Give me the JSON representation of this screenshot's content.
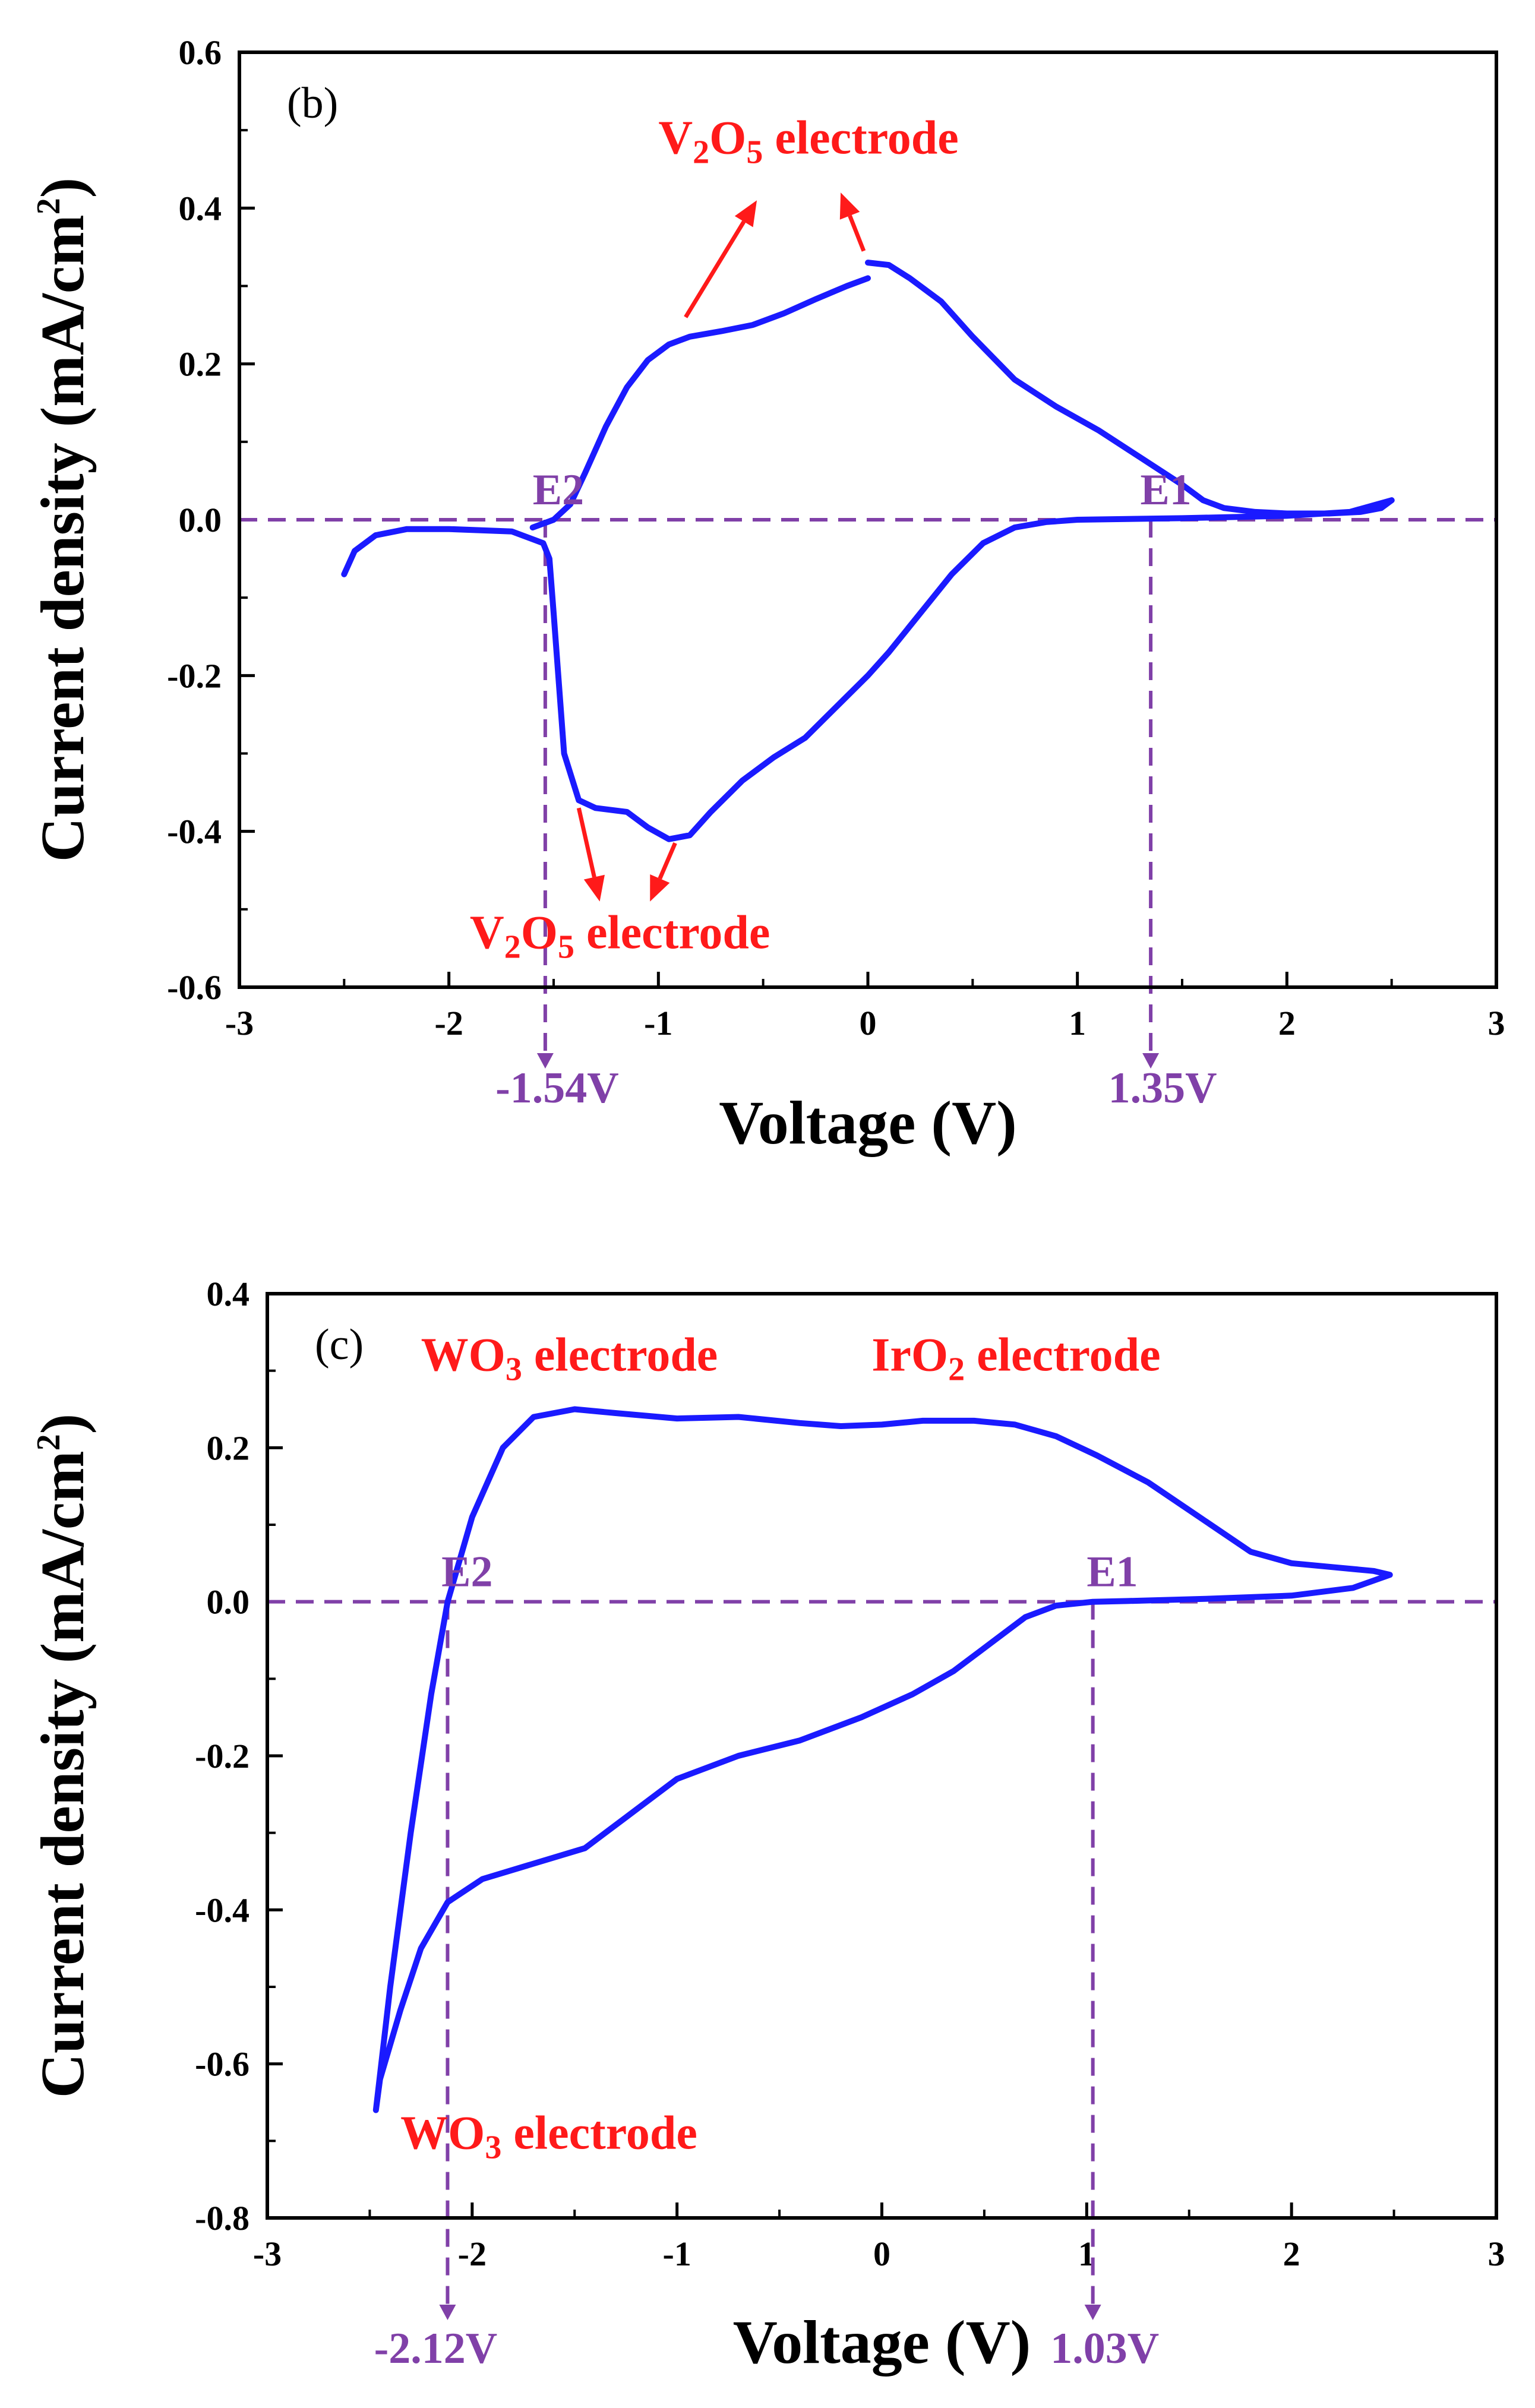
{
  "chart_data": [
    {
      "type": "line",
      "panel_label": "(b)",
      "xlabel": "Voltage (V)",
      "ylabel_main": "Current density (mA/cm",
      "ylabel_sup": "2",
      "ylabel_close": ")",
      "xlim": [
        -3,
        3
      ],
      "ylim": [
        -0.6,
        0.6
      ],
      "xticks": [
        "-3",
        "-2",
        "-1",
        "0",
        "1",
        "2",
        "3"
      ],
      "yticks": [
        "-0.6",
        "-0.4",
        "-0.2",
        "0.0",
        "0.2",
        "0.4",
        "0.6"
      ],
      "line_color": "#1a1aff",
      "accent_color": "#ff1a1a",
      "marker_color": "#8040a8",
      "series": [
        {
          "name": "upper-sweep-1",
          "points": [
            [
              -1.6,
              -0.01
            ],
            [
              -1.5,
              0.0
            ],
            [
              -1.42,
              0.02
            ],
            [
              -1.35,
              0.06
            ],
            [
              -1.25,
              0.12
            ],
            [
              -1.15,
              0.17
            ],
            [
              -1.05,
              0.205
            ],
            [
              -0.95,
              0.225
            ],
            [
              -0.85,
              0.235
            ],
            [
              -0.7,
              0.242
            ],
            [
              -0.55,
              0.25
            ],
            [
              -0.4,
              0.265
            ],
            [
              -0.25,
              0.283
            ],
            [
              -0.1,
              0.3
            ],
            [
              0.0,
              0.31
            ]
          ]
        },
        {
          "name": "upper-sweep-2",
          "points": [
            [
              0.0,
              0.33
            ],
            [
              0.1,
              0.327
            ],
            [
              0.2,
              0.31
            ],
            [
              0.35,
              0.28
            ],
            [
              0.5,
              0.235
            ],
            [
              0.7,
              0.18
            ],
            [
              0.9,
              0.145
            ],
            [
              1.1,
              0.115
            ],
            [
              1.3,
              0.08
            ],
            [
              1.5,
              0.045
            ],
            [
              1.6,
              0.025
            ],
            [
              1.7,
              0.015
            ],
            [
              1.85,
              0.01
            ],
            [
              2.0,
              0.008
            ],
            [
              2.2,
              0.008
            ],
            [
              2.35,
              0.01
            ],
            [
              2.45,
              0.015
            ],
            [
              2.5,
              0.025
            ]
          ]
        },
        {
          "name": "lower-sweep",
          "points": [
            [
              2.5,
              0.025
            ],
            [
              2.3,
              0.01
            ],
            [
              2.0,
              0.005
            ],
            [
              1.5,
              0.002
            ],
            [
              1.0,
              0.0
            ],
            [
              0.85,
              -0.003
            ],
            [
              0.7,
              -0.01
            ],
            [
              0.55,
              -0.03
            ],
            [
              0.4,
              -0.07
            ],
            [
              0.25,
              -0.12
            ],
            [
              0.1,
              -0.17
            ],
            [
              0.0,
              -0.2
            ],
            [
              -0.15,
              -0.24
            ],
            [
              -0.3,
              -0.28
            ],
            [
              -0.45,
              -0.305
            ],
            [
              -0.6,
              -0.335
            ],
            [
              -0.75,
              -0.375
            ],
            [
              -0.85,
              -0.405
            ],
            [
              -0.95,
              -0.41
            ],
            [
              -1.05,
              -0.395
            ],
            [
              -1.15,
              -0.375
            ],
            [
              -1.3,
              -0.37
            ],
            [
              -1.38,
              -0.36
            ],
            [
              -1.45,
              -0.3
            ],
            [
              -1.5,
              -0.12
            ],
            [
              -1.52,
              -0.05
            ],
            [
              -1.55,
              -0.03
            ],
            [
              -1.7,
              -0.015
            ],
            [
              -2.0,
              -0.012
            ],
            [
              -2.2,
              -0.012
            ],
            [
              -2.35,
              -0.02
            ],
            [
              -2.45,
              -0.04
            ],
            [
              -2.5,
              -0.07
            ]
          ]
        }
      ],
      "reference_lines": {
        "horizontal_y": 0.0,
        "vertical_x": [
          -1.54,
          1.35
        ],
        "labels": [
          "-1.54V",
          "1.35V"
        ]
      },
      "annotations": [
        {
          "id": "E2",
          "text": "E2",
          "x": -1.6,
          "y": 0.02
        },
        {
          "id": "E1",
          "text": "E1",
          "x": 1.3,
          "y": 0.02
        },
        {
          "id": "top",
          "main": "V",
          "sub1": "2",
          "mid": "O",
          "sub2": "5",
          "tail": " electrode",
          "x": -1.0,
          "y": 0.47
        },
        {
          "id": "bottom",
          "main": "V",
          "sub1": "2",
          "mid": "O",
          "sub2": "5",
          "tail": " electrode",
          "x": -1.9,
          "y": -0.55
        }
      ],
      "arrows": [
        {
          "from": [
            -0.87,
            0.26
          ],
          "to": [
            -0.53,
            0.41
          ]
        },
        {
          "from": [
            -0.02,
            0.345
          ],
          "to": [
            -0.13,
            0.42
          ]
        },
        {
          "from": [
            -1.38,
            -0.37
          ],
          "to": [
            -1.28,
            -0.49
          ]
        },
        {
          "from": [
            -0.92,
            -0.415
          ],
          "to": [
            -1.04,
            -0.49
          ]
        }
      ]
    },
    {
      "type": "line",
      "panel_label": "(c)",
      "xlabel": "Voltage (V)",
      "ylabel_main": "Current density (mA/cm",
      "ylabel_sup": "2",
      "ylabel_close": ")",
      "xlim": [
        -3,
        3
      ],
      "ylim": [
        -0.8,
        0.4
      ],
      "xticks": [
        "-3",
        "-2",
        "-1",
        "0",
        "1",
        "2",
        "3"
      ],
      "yticks": [
        "-0.8",
        "-0.6",
        "-0.4",
        "-0.2",
        "0.0",
        "0.2",
        "0.4"
      ],
      "line_color": "#1a1aff",
      "accent_color": "#ff1a1a",
      "marker_color": "#8040a8",
      "series": [
        {
          "name": "cv-loop",
          "points": [
            [
              -2.47,
              -0.66
            ],
            [
              -2.4,
              -0.5
            ],
            [
              -2.3,
              -0.3
            ],
            [
              -2.2,
              -0.12
            ],
            [
              -2.12,
              0.0
            ],
            [
              -2.0,
              0.11
            ],
            [
              -1.85,
              0.2
            ],
            [
              -1.7,
              0.24
            ],
            [
              -1.5,
              0.25
            ],
            [
              -1.3,
              0.245
            ],
            [
              -1.0,
              0.238
            ],
            [
              -0.7,
              0.24
            ],
            [
              -0.4,
              0.232
            ],
            [
              -0.2,
              0.228
            ],
            [
              0.0,
              0.23
            ],
            [
              0.2,
              0.235
            ],
            [
              0.45,
              0.235
            ],
            [
              0.65,
              0.23
            ],
            [
              0.85,
              0.215
            ],
            [
              1.05,
              0.19
            ],
            [
              1.3,
              0.155
            ],
            [
              1.55,
              0.11
            ],
            [
              1.8,
              0.065
            ],
            [
              2.0,
              0.05
            ],
            [
              2.2,
              0.045
            ],
            [
              2.4,
              0.04
            ],
            [
              2.48,
              0.035
            ],
            [
              2.3,
              0.018
            ],
            [
              2.0,
              0.008
            ],
            [
              1.6,
              0.004
            ],
            [
              1.2,
              0.001
            ],
            [
              1.03,
              0.0
            ],
            [
              0.85,
              -0.005
            ],
            [
              0.7,
              -0.02
            ],
            [
              0.55,
              -0.05
            ],
            [
              0.35,
              -0.09
            ],
            [
              0.15,
              -0.12
            ],
            [
              -0.1,
              -0.15
            ],
            [
              -0.4,
              -0.18
            ],
            [
              -0.7,
              -0.2
            ],
            [
              -1.0,
              -0.23
            ],
            [
              -1.25,
              -0.28
            ],
            [
              -1.45,
              -0.32
            ],
            [
              -1.7,
              -0.34
            ],
            [
              -1.95,
              -0.36
            ],
            [
              -2.12,
              -0.39
            ],
            [
              -2.25,
              -0.45
            ],
            [
              -2.35,
              -0.53
            ],
            [
              -2.45,
              -0.62
            ],
            [
              -2.47,
              -0.66
            ]
          ]
        }
      ],
      "reference_lines": {
        "horizontal_y": 0.0,
        "vertical_x": [
          -2.12,
          1.03
        ],
        "labels": [
          "-2.12V",
          "1.03V"
        ]
      },
      "annotations": [
        {
          "id": "E2",
          "text": "E2",
          "x": -2.15,
          "y": 0.02
        },
        {
          "id": "E1",
          "text": "E1",
          "x": 1.0,
          "y": 0.02
        },
        {
          "id": "top-left",
          "main": "WO",
          "sub1": "3",
          "mid": "",
          "sub2": "",
          "tail": " electrode",
          "x": -2.25,
          "y": 0.3
        },
        {
          "id": "top-right",
          "main": "IrO",
          "sub1": "2",
          "mid": "",
          "sub2": "",
          "tail": " electrode",
          "x": -0.05,
          "y": 0.3
        },
        {
          "id": "bottom",
          "main": "WO",
          "sub1": "3",
          "mid": "",
          "sub2": "",
          "tail": " electrode",
          "x": -2.35,
          "y": -0.71
        }
      ],
      "arrows": []
    }
  ]
}
